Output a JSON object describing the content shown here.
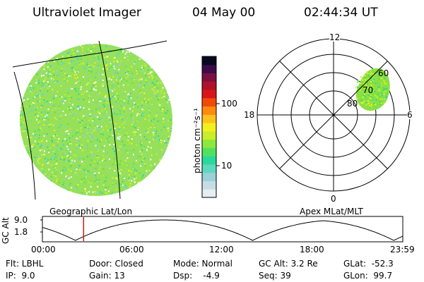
{
  "header": {
    "instrument": "Ultraviolet Imager",
    "date": "04 May 00",
    "time": "02:44:34 UT"
  },
  "colorbar": {
    "unit_label": "photon cm⁻²s⁻¹",
    "ticks": [
      {
        "label": "100",
        "value": 100
      },
      {
        "label": "10",
        "value": 10
      }
    ],
    "colors": [
      "#e6eef2",
      "#c6dde4",
      "#9ad0d8",
      "#5fd8c0",
      "#2ad89a",
      "#52e060",
      "#8ce83a",
      "#c8ee2a",
      "#f4f020",
      "#ffc21a",
      "#ff8a10",
      "#f04a0a",
      "#d8141a",
      "#b0102a",
      "#7a1040",
      "#3c0c48",
      "#0a0820"
    ]
  },
  "map_labels": {
    "left": "Geographic Lat/Lon",
    "right": "Apex MLat/MLT"
  },
  "polar": {
    "mlt_labels": {
      "top": "12",
      "left": "18",
      "right": "6",
      "bottom": "0"
    },
    "mlat_labels": [
      "60",
      "70",
      "80"
    ]
  },
  "altitude_plot": {
    "ylabel": "GC Alt",
    "yticks": [
      "9.0",
      "1.8"
    ],
    "xticks": [
      "00:00",
      "06:00",
      "12:00",
      "18:00",
      "23:59"
    ],
    "current_time_hours": 2.742
  },
  "footer": {
    "flt": "Flt: LBHL",
    "ip": "IP:  9.0",
    "door": "Door: Closed",
    "gain": "Gain: 13",
    "mode": "Mode: Normal",
    "dsp": "Dsp:    -4.9",
    "gc_alt": "GC Alt: 3.2 Re",
    "seq": "Seq: 39",
    "glat": "GLat:  -52.3",
    "glon": "GLon:  99.7"
  }
}
